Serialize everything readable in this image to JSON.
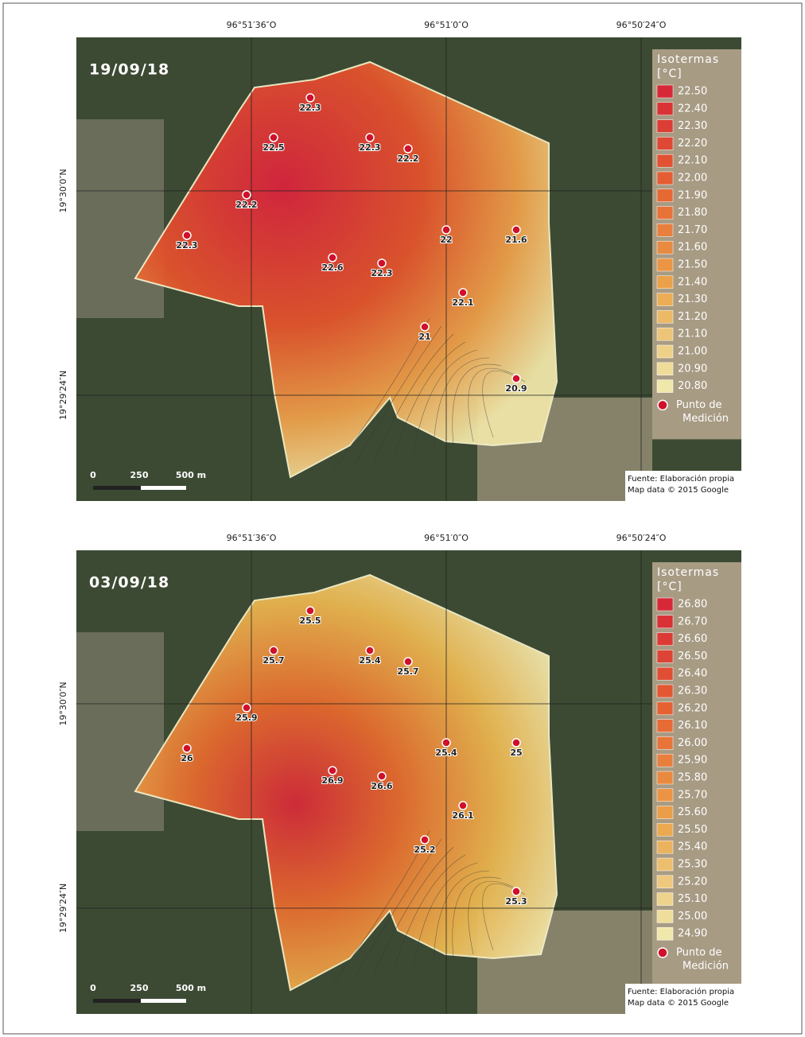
{
  "panels": [
    {
      "date": "19/09/18",
      "lon_labels": [
        "96°51′36″O",
        "96°51′0″O",
        "96°50′24″O"
      ],
      "lat_labels": [
        "19°30′0″N",
        "19°29′24″N"
      ],
      "legend": {
        "title": "Isotermas",
        "unit": "[°C]",
        "entries": [
          "22.50",
          "22.40",
          "22.30",
          "22.20",
          "22.10",
          "22.00",
          "21.90",
          "21.80",
          "21.70",
          "21.60",
          "21.50",
          "21.40",
          "21.30",
          "21.20",
          "21.10",
          "21.00",
          "20.90",
          "20.80"
        ],
        "point_label": [
          "Punto de",
          "Medición"
        ]
      },
      "points": [
        "22.3",
        "22.5",
        "22.3",
        "22.2",
        "22.2",
        "22.3",
        "22",
        "21.6",
        "22.6",
        "22.3",
        "22.1",
        "21",
        "20.9"
      ],
      "scale": [
        "0",
        "250",
        "500 m"
      ],
      "source": [
        "Fuente: Elaboración propia",
        "Map data © 2015 Google"
      ]
    },
    {
      "date": "03/09/18",
      "lon_labels": [
        "96°51′36″O",
        "96°51′0″O",
        "96°50′24″O"
      ],
      "lat_labels": [
        "19°30′0″N",
        "19°29′24″N"
      ],
      "legend": {
        "title": "Isotermas",
        "unit": "[°C]",
        "entries": [
          "26.80",
          "26.70",
          "26.60",
          "26.50",
          "26.40",
          "26.30",
          "26.20",
          "26.10",
          "26.00",
          "25.90",
          "25.80",
          "25.70",
          "25.60",
          "25.50",
          "25.40",
          "25.30",
          "25.20",
          "25.10",
          "25.00",
          "24.90"
        ],
        "point_label": [
          "Punto de",
          "Medición"
        ]
      },
      "points": [
        "25.5",
        "25.7",
        "25.4",
        "25.7",
        "25.9",
        "26",
        "25.4",
        "25",
        "26.9",
        "26.6",
        "26.1",
        "25.2",
        "25.3"
      ],
      "scale": [
        "0",
        "250",
        "500 m"
      ],
      "source": [
        "Fuente: Elaboración propia",
        "Map data © 2015 Google"
      ]
    }
  ]
}
